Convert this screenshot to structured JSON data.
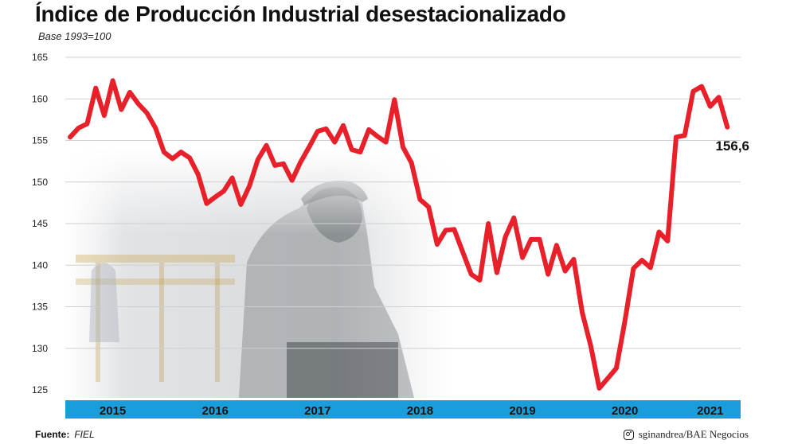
{
  "title": "Índice de Producción Industrial desestacionalizado",
  "subtitle": "Base 1993=100",
  "source_label": "Fuente:",
  "source_value": "FIEL",
  "credit": "sginandrea/BAE Negocios",
  "colors": {
    "line": "#e8202a",
    "axis_band": "#1a9ddb",
    "grid": "#cfcfcf",
    "text": "#111111"
  },
  "chart_data": {
    "type": "line",
    "title": "Índice de Producción Industrial desestacionalizado",
    "subtitle": "Base 1993=100",
    "xlabel": "",
    "ylabel": "",
    "ylim": [
      125,
      165
    ],
    "yticks": [
      125,
      130,
      135,
      140,
      145,
      150,
      155,
      160,
      165
    ],
    "xlim": [
      "2015-01",
      "2021-07"
    ],
    "year_labels": [
      {
        "label": "2015",
        "x": "2015-06"
      },
      {
        "label": "2016",
        "x": "2016-06"
      },
      {
        "label": "2017",
        "x": "2017-06"
      },
      {
        "label": "2018",
        "x": "2018-06"
      },
      {
        "label": "2019",
        "x": "2019-06"
      },
      {
        "label": "2020",
        "x": "2020-06"
      },
      {
        "label": "2021",
        "x": "2021-04"
      }
    ],
    "grid": true,
    "series": [
      {
        "x": [
          "2015-01",
          "2015-02",
          "2015-03",
          "2015-04",
          "2015-05",
          "2015-06",
          "2015-07",
          "2015-08",
          "2015-09",
          "2015-10",
          "2015-11",
          "2015-12",
          "2016-01",
          "2016-02",
          "2016-03",
          "2016-04",
          "2016-05",
          "2016-06",
          "2016-07",
          "2016-08",
          "2016-09",
          "2016-10",
          "2016-11",
          "2016-12",
          "2017-01",
          "2017-02",
          "2017-03",
          "2017-04",
          "2017-05",
          "2017-06",
          "2017-07",
          "2017-08",
          "2017-09",
          "2017-10",
          "2017-11",
          "2017-12",
          "2018-01",
          "2018-02",
          "2018-03",
          "2018-04",
          "2018-05",
          "2018-06",
          "2018-07",
          "2018-08",
          "2018-09",
          "2018-10",
          "2018-11",
          "2018-12",
          "2019-01",
          "2019-02",
          "2019-03",
          "2019-04",
          "2019-05",
          "2019-06",
          "2019-07",
          "2019-08",
          "2019-09",
          "2019-10",
          "2019-11",
          "2019-12",
          "2020-01",
          "2020-02",
          "2020-03",
          "2020-04",
          "2020-05",
          "2020-06",
          "2020-07",
          "2020-08",
          "2020-09",
          "2020-10",
          "2020-11",
          "2020-12",
          "2021-01",
          "2021-02",
          "2021-03",
          "2021-04",
          "2021-05",
          "2021-06"
        ],
        "y": [
          155.4,
          156.5,
          157.0,
          161.3,
          158.0,
          162.2,
          158.7,
          160.8,
          159.4,
          158.3,
          156.5,
          153.6,
          152.8,
          153.6,
          152.9,
          150.9,
          147.4,
          148.2,
          148.9,
          150.5,
          147.3,
          149.5,
          152.7,
          154.4,
          152.0,
          152.2,
          150.2,
          152.4,
          154.2,
          156.1,
          156.4,
          154.8,
          156.8,
          153.9,
          153.6,
          156.3,
          155.5,
          154.8,
          159.9,
          154.2,
          152.3,
          147.9,
          147.0,
          142.5,
          144.2,
          144.3,
          141.6,
          138.9,
          138.2,
          145.0,
          139.1,
          143.4,
          145.7,
          140.9,
          143.1,
          143.1,
          138.9,
          142.4,
          139.3,
          140.7,
          134.3,
          130.3,
          125.2,
          126.4,
          127.6,
          133.3,
          139.6,
          140.6,
          139.7,
          144.0,
          142.9,
          155.4,
          155.6,
          160.9,
          161.5,
          159.1,
          160.2,
          156.6
        ]
      }
    ],
    "annotations": [
      {
        "text": "156,6",
        "x": "2021-06",
        "y": 156.6
      }
    ]
  }
}
